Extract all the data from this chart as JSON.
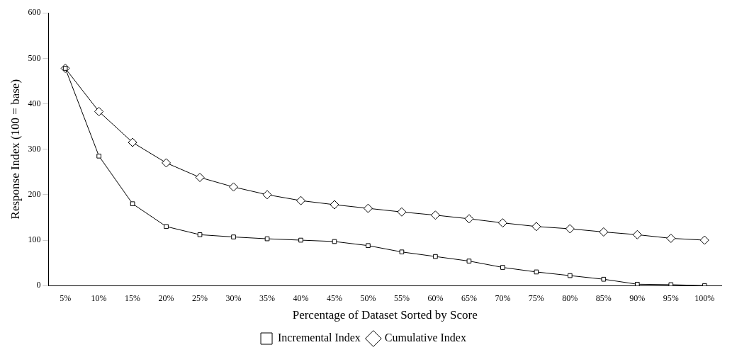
{
  "chart_data": {
    "type": "line",
    "xlabel": "Percentage of Dataset Sorted by Score",
    "ylabel": "Response Index (100 = base)",
    "categories": [
      "5%",
      "10%",
      "15%",
      "20%",
      "25%",
      "30%",
      "35%",
      "40%",
      "45%",
      "50%",
      "55%",
      "60%",
      "65%",
      "70%",
      "75%",
      "80%",
      "85%",
      "90%",
      "95%",
      "100%"
    ],
    "series": [
      {
        "name": "Incremental Index",
        "color": "#000000",
        "marker": "square",
        "values": [
          478,
          285,
          180,
          130,
          112,
          107,
          103,
          100,
          97,
          88,
          74,
          64,
          54,
          40,
          30,
          22,
          14,
          3,
          2,
          0
        ]
      },
      {
        "name": "Cumulative Index",
        "color": "#000000",
        "marker": "diamond",
        "values": [
          478,
          383,
          315,
          270,
          238,
          217,
          200,
          187,
          178,
          170,
          162,
          155,
          147,
          138,
          130,
          125,
          118,
          112,
          104,
          100
        ]
      }
    ],
    "ylim": [
      0,
      600
    ],
    "yticks": [
      0,
      100,
      200,
      300,
      400,
      500,
      600
    ],
    "grid": false,
    "legend": "bottom",
    "line_style": "solid"
  }
}
